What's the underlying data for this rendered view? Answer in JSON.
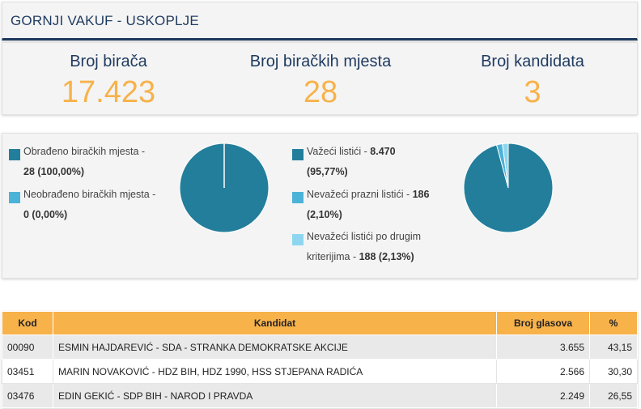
{
  "header": {
    "title": "GORNJI VAKUF - USKOPLJE"
  },
  "stats": [
    {
      "label": "Broj birača",
      "value": "17.423"
    },
    {
      "label": "Broj biračkih mjesta",
      "value": "28"
    },
    {
      "label": "Broj kandidata",
      "value": "3"
    }
  ],
  "polling_chart": {
    "legend": [
      {
        "line1": "Obrađeno biračkih mjesta -",
        "line2": "28 (100,00%)",
        "color": "#237e9b"
      },
      {
        "line1": "Neobrađeno biračkih mjesta -",
        "line2": "0 (0,00%)",
        "color": "#4bb3d8"
      }
    ],
    "slices": [
      100.0,
      0.0
    ]
  },
  "ballot_chart": {
    "legend": [
      {
        "line1a": "Važeći listići - ",
        "line1b": "8.470",
        "line2": "(95,77%)",
        "color": "#237e9b"
      },
      {
        "line1a": "Nevažeći prazni listići - ",
        "line1b": "186",
        "line2": "(2,10%)",
        "color": "#4bb3d8"
      },
      {
        "line1a": "Nevažeći listići po drugim",
        "line1b": "",
        "line2a": "kriterijima - ",
        "line2": "188 (2,13%)",
        "color": "#8ed6ef"
      }
    ],
    "slices": [
      95.77,
      2.1,
      2.13
    ]
  },
  "table": {
    "headers": {
      "kod": "Kod",
      "kandidat": "Kandidat",
      "votes": "Broj glasova",
      "pct": "%"
    },
    "rows": [
      {
        "kod": "00090",
        "kandidat": "ESMIN HAJDAREVIĆ - SDA - STRANKA DEMOKRATSKE AKCIJE",
        "votes": "3.655",
        "pct": "43,15"
      },
      {
        "kod": "03451",
        "kandidat": "MARIN NOVAKOVIĆ - HDZ BIH, HDZ 1990, HSS STJEPANA RADIĆA",
        "votes": "2.566",
        "pct": "30,30"
      },
      {
        "kod": "03476",
        "kandidat": "EDIN GEKIĆ - SDP BIH - NAROD I PRAVDA",
        "votes": "2.249",
        "pct": "26,55"
      }
    ]
  },
  "colors": {
    "navy": "#1f3a5f",
    "accent": "#f7b24a",
    "slice1": "#237e9b",
    "slice2": "#4bb3d8",
    "slice3": "#8ed6ef"
  }
}
